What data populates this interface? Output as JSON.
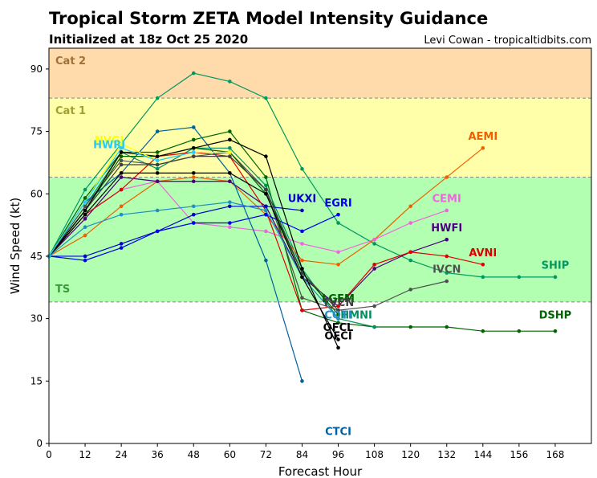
{
  "header": {
    "title": "Tropical Storm ZETA Model Intensity Guidance",
    "subtitle": "Initialized at 18z Oct 25 2020",
    "credit": "Levi Cowan - tropicaltidbits.com"
  },
  "chart_data": {
    "type": "line",
    "xlabel": "Forecast Hour",
    "ylabel": "Wind Speed (kt)",
    "xlim": [
      0,
      180
    ],
    "ylim": [
      0,
      95
    ],
    "xticks": [
      0,
      12,
      24,
      36,
      48,
      60,
      72,
      84,
      96,
      108,
      120,
      132,
      144,
      156,
      168
    ],
    "yticks": [
      0,
      15,
      30,
      45,
      60,
      75,
      90
    ],
    "grid": false,
    "bands": [
      {
        "name": "Cat 2",
        "from": 83,
        "to": 95,
        "color": "#ffdaaa",
        "label_color": "#a0703a"
      },
      {
        "name": "Cat 1",
        "from": 64,
        "to": 83,
        "color": "#ffffaa",
        "label_color": "#a0a030"
      },
      {
        "name": "TS",
        "from": 34,
        "to": 64,
        "color": "#b2ffb2",
        "label_color": "#3a9a3a"
      }
    ],
    "series": [
      {
        "name": "SHIP",
        "color": "#009960",
        "label_at": [
          168,
          42
        ],
        "x": [
          0,
          12,
          24,
          36,
          48,
          60,
          72,
          84,
          96,
          108,
          120,
          132,
          144,
          156,
          168
        ],
        "y": [
          45,
          61,
          72,
          83,
          89,
          87,
          83,
          66,
          53,
          48,
          44,
          41,
          40,
          40,
          40
        ]
      },
      {
        "name": "DSHP",
        "color": "#006400",
        "label_at": [
          168,
          30
        ],
        "x": [
          0,
          12,
          24,
          36,
          48,
          60,
          72,
          84,
          96,
          108,
          120,
          132,
          144,
          156,
          168
        ],
        "y": [
          45,
          59,
          70,
          70,
          73,
          75,
          64,
          32,
          29,
          28,
          28,
          28,
          27,
          27,
          27
        ]
      },
      {
        "name": "HMNI",
        "color": "#009060",
        "label_at": [
          102,
          30
        ],
        "x": [
          0,
          12,
          24,
          36,
          48,
          60,
          72,
          84,
          96,
          108
        ],
        "y": [
          45,
          57,
          70,
          66,
          71,
          71,
          62,
          42,
          30,
          28
        ]
      },
      {
        "name": "AEMI",
        "color": "#ee6000",
        "label_at": [
          144,
          73
        ],
        "x": [
          0,
          12,
          24,
          36,
          48,
          60,
          72,
          84,
          96,
          108,
          120,
          132,
          144
        ],
        "y": [
          45,
          50,
          57,
          63,
          64,
          63,
          55,
          44,
          43,
          49,
          57,
          64,
          71
        ]
      },
      {
        "name": "CEMI",
        "color": "#ee66dd",
        "label_at": [
          132,
          58
        ],
        "x": [
          0,
          12,
          24,
          36,
          48,
          60,
          72,
          84,
          96,
          108,
          120,
          132
        ],
        "y": [
          45,
          55,
          61,
          63,
          53,
          52,
          51,
          48,
          46,
          49,
          53,
          56
        ]
      },
      {
        "name": "HWFI",
        "color": "#4b0080",
        "label_at": [
          132,
          51
        ],
        "x": [
          0,
          12,
          24,
          36,
          48,
          60,
          72,
          84,
          96,
          108,
          120,
          132
        ],
        "y": [
          45,
          54,
          64,
          63,
          63,
          63,
          57,
          40,
          33,
          42,
          46,
          49
        ]
      },
      {
        "name": "AVNI",
        "color": "#dd0000",
        "label_at": [
          144,
          45
        ],
        "x": [
          0,
          12,
          24,
          36,
          48,
          60,
          72,
          84,
          96,
          108,
          120,
          132,
          144
        ],
        "y": [
          45,
          55,
          61,
          69,
          70,
          69,
          56,
          32,
          33,
          43,
          46,
          45,
          43
        ]
      },
      {
        "name": "IVCN",
        "color": "#505050",
        "label_at": [
          132,
          41
        ],
        "x": [
          0,
          12,
          24,
          36,
          48,
          60,
          72,
          84,
          96,
          108,
          120,
          132
        ],
        "y": [
          45,
          57,
          68,
          67,
          69,
          70,
          61,
          35,
          32,
          33,
          37,
          39
        ]
      },
      {
        "name": "UKXI",
        "color": "#0000cc",
        "label_at": [
          84,
          58
        ],
        "x": [
          0,
          12,
          24,
          36,
          48,
          60,
          72,
          84
        ],
        "y": [
          45,
          45,
          48,
          51,
          55,
          57,
          57,
          56
        ]
      },
      {
        "name": "EGRI",
        "color": "#0000ee",
        "label_at": [
          96,
          57
        ],
        "x": [
          0,
          12,
          24,
          36,
          48,
          60,
          72,
          84,
          96
        ],
        "y": [
          45,
          44,
          47,
          51,
          53,
          53,
          55,
          51,
          55
        ]
      },
      {
        "name": "CTCI",
        "color": "#0060a0",
        "label_at": [
          96,
          2
        ],
        "x": [
          0,
          12,
          24,
          36,
          48,
          60,
          72,
          84
        ],
        "y": [
          45,
          58,
          65,
          75,
          76,
          65,
          44,
          15
        ]
      },
      {
        "name": "LGEM",
        "color": "#006000",
        "label_at": [
          96,
          34
        ],
        "x": [
          0,
          12,
          24,
          36,
          48,
          60,
          72,
          84,
          96
        ],
        "y": [
          45,
          56,
          69,
          69,
          71,
          70,
          60,
          41,
          31
        ]
      },
      {
        "name": "DSHP_dummy_hidden",
        "color": "#000000",
        "hidden": true,
        "x": [],
        "y": []
      },
      {
        "name": "TVCN",
        "color": "#404040",
        "label_at": [
          96,
          33
        ],
        "x": [
          0,
          12,
          24,
          36,
          48,
          60,
          72,
          84,
          96
        ],
        "y": [
          45,
          56,
          67,
          67,
          69,
          69,
          61,
          41,
          32
        ]
      },
      {
        "name": "COTI",
        "color": "#2090c0",
        "label_at": [
          96,
          30
        ],
        "x": [
          0,
          12,
          24,
          36,
          48,
          60,
          72,
          84,
          96
        ],
        "y": [
          45,
          52,
          55,
          56,
          57,
          58,
          56,
          40,
          30
        ]
      },
      {
        "name": "OFCL",
        "color": "#000000",
        "label_at": [
          96,
          27
        ],
        "x": [
          0,
          12,
          24,
          36,
          48,
          60,
          72,
          84,
          96
        ],
        "y": [
          45,
          55,
          65,
          65,
          65,
          65,
          60,
          40,
          25
        ]
      },
      {
        "name": "OFCI",
        "color": "#000000",
        "label_at": [
          96,
          25
        ],
        "x": [
          0,
          12,
          24,
          36,
          48,
          60,
          72,
          84,
          96
        ],
        "y": [
          45,
          56,
          70,
          69,
          71,
          73,
          69,
          42,
          23
        ]
      },
      {
        "name": "NVGI",
        "color": "#ffff00",
        "label_at": [
          20,
          72
        ],
        "x": [
          0,
          12,
          24,
          36,
          48,
          60
        ],
        "y": [
          45,
          58,
          72,
          68,
          70,
          70
        ]
      },
      {
        "name": "HWRI",
        "color": "#22ccff",
        "label_at": [
          20,
          71
        ],
        "x": [
          0,
          12,
          24,
          36,
          48
        ],
        "y": [
          45,
          58,
          71,
          68,
          70
        ]
      }
    ],
    "labeled_series": [
      "SHIP",
      "DSHP",
      "HMNI",
      "AEMI",
      "CEMI",
      "HWFI",
      "AVNI",
      "IVCN",
      "UKXI",
      "EGRI",
      "CTCI",
      "LGEM",
      "TVCN",
      "COTI",
      "OFCL",
      "OFCI",
      "NVGI",
      "HWRI"
    ]
  }
}
